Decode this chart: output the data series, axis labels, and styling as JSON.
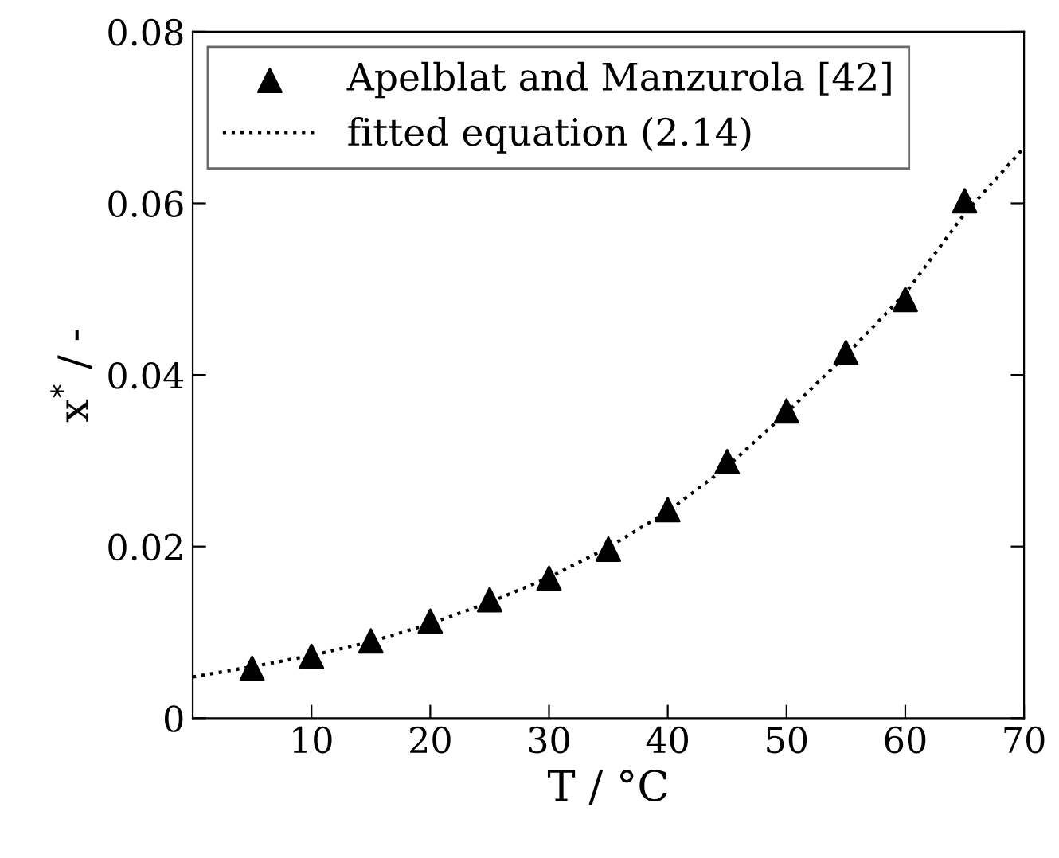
{
  "chart_data": {
    "type": "scatter",
    "xlabel": "T / °C",
    "ylabel": "x$^{*}$ / -",
    "xlim": [
      0,
      70
    ],
    "xticks": [
      10,
      20,
      30,
      40,
      50,
      60,
      70
    ],
    "ylim": [
      0,
      0.08
    ],
    "yticks": [
      0,
      0.02,
      0.04,
      0.06,
      0.08
    ],
    "grid": false,
    "legend": "top left",
    "series": [
      {
        "name": "Apelblat and Manzurola [42]",
        "marker": "triangle",
        "color": "#000000",
        "x": [
          5,
          10,
          15,
          20,
          25,
          30,
          35,
          40,
          45,
          50,
          55,
          60,
          65
        ],
        "values": [
          0.0058,
          0.0072,
          0.009,
          0.0113,
          0.0138,
          0.0163,
          0.0197,
          0.0243,
          0.0299,
          0.0358,
          0.0426,
          0.0488,
          0.0603
        ]
      },
      {
        "name": "fitted equation (2.14)",
        "type": "line",
        "line_style": "dotted",
        "marker": "none",
        "color": "#000000",
        "x": [
          0,
          5,
          10,
          15,
          20,
          25,
          30,
          35,
          40,
          45,
          50,
          55,
          60,
          65,
          70
        ],
        "values": [
          0.0048,
          0.006,
          0.0073,
          0.0089,
          0.011,
          0.0135,
          0.0164,
          0.0199,
          0.0241,
          0.0293,
          0.0356,
          0.0423,
          0.0495,
          0.0588,
          0.0665
        ]
      }
    ]
  }
}
